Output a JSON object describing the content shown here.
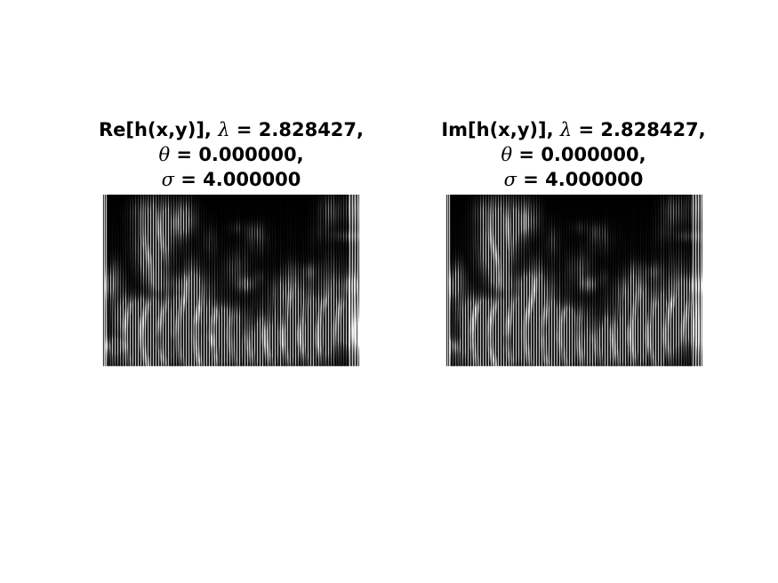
{
  "figure": {
    "panels": [
      {
        "title_line1_prefix": "Re[h(x,y)],",
        "title_line1_symbol": "λ",
        "title_line1_value": "= 2.828427,",
        "title_line2_symbol": "θ",
        "title_line2_value": "= 0.000000,",
        "title_line3_symbol": "σ",
        "title_line3_value": "= 4.000000"
      },
      {
        "title_line1_prefix": "Im[h(x,y)],",
        "title_line1_symbol": "λ",
        "title_line1_value": "= 2.828427,",
        "title_line2_symbol": "θ",
        "title_line2_value": "= 0.000000,",
        "title_line3_symbol": "σ",
        "title_line3_value": "= 4.000000"
      }
    ],
    "colors": {
      "background": "#ffffff",
      "image_dark": "#000000",
      "image_light": "#ffffff"
    }
  }
}
